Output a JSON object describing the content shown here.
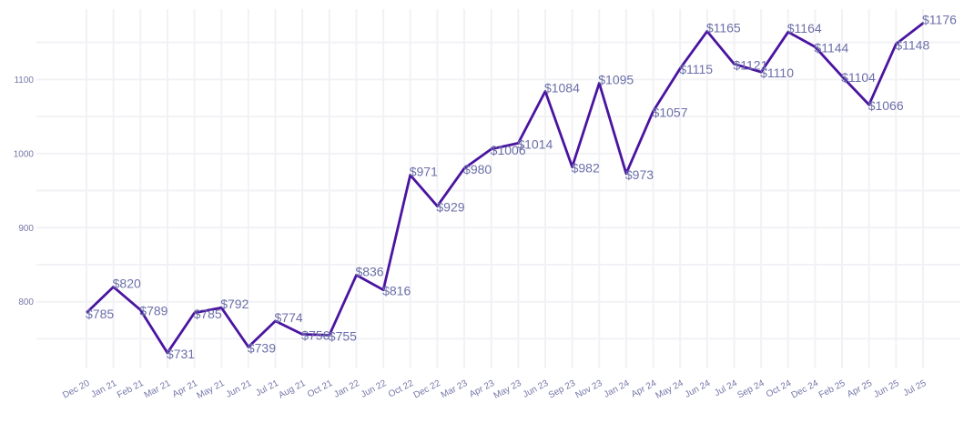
{
  "chart_data": {
    "type": "line",
    "title": "",
    "xlabel": "",
    "ylabel": "",
    "grid": true,
    "legend": "none",
    "ylim": [
      710,
      1195
    ],
    "yticks": [
      800,
      900,
      1000,
      1100
    ],
    "color": "#4a14a0",
    "label_color": "#6b6fa8",
    "tick_color": "#7577a8",
    "value_prefix": "$",
    "categories": [
      "Dec 20",
      "Jan 21",
      "Feb 21",
      "Mar 21",
      "Apr 21",
      "May 21",
      "Jun 21",
      "Jul 21",
      "Aug 21",
      "Oct 21",
      "Jan 22",
      "Jun 22",
      "Oct 22",
      "Dec 22",
      "Mar 23",
      "Apr 23",
      "May 23",
      "Jun 23",
      "Sep 23",
      "Nov 23",
      "Jan 24",
      "Apr 24",
      "May 24",
      "Jun 24",
      "Jul 24",
      "Sep 24",
      "Oct 24",
      "Dec 24",
      "Feb 25",
      "Apr 25",
      "Jun 25",
      "Jul 25"
    ],
    "values": [
      785,
      820,
      789,
      731,
      785,
      792,
      739,
      774,
      756,
      755,
      836,
      816,
      971,
      929,
      980,
      1006,
      1014,
      1084,
      982,
      1095,
      973,
      1057,
      1115,
      1165,
      1121,
      1110,
      1164,
      1144,
      1104,
      1066,
      1148,
      1176
    ]
  }
}
